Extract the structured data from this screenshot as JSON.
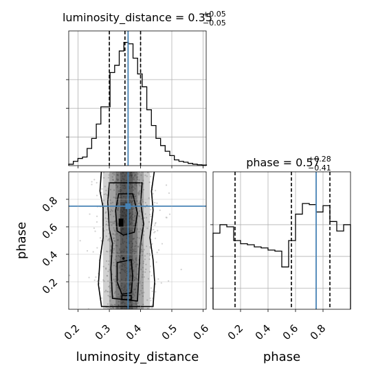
{
  "figure_background": "#ffffff",
  "colors": {
    "hist": "#000000",
    "truth": "#4682b4",
    "grid": "#b0b0b0",
    "scatter": "#9a9a9a"
  },
  "chart_data": [
    {
      "type": "histogram",
      "panel": "luminosity_distance marginal",
      "title": {
        "base": "luminosity_distance = 0.35",
        "sup": "+0.05",
        "sub": "−0.05"
      },
      "xlim": [
        0.17,
        0.61
      ],
      "ylim": [
        0,
        4.7
      ],
      "xticks": [
        0.2,
        0.3,
        0.4,
        0.5,
        0.6
      ],
      "yticks": [
        1,
        2,
        3
      ],
      "bin_start": 0.17,
      "bin_width": 0.0147,
      "counts": [
        0.05,
        0.15,
        0.25,
        0.3,
        0.6,
        0.95,
        1.45,
        2.05,
        2.05,
        3.25,
        3.5,
        4.0,
        4.3,
        4.25,
        3.75,
        3.2,
        2.75,
        1.95,
        1.4,
        0.95,
        0.7,
        0.5,
        0.35,
        0.2,
        0.15,
        0.12,
        0.08,
        0.05,
        0.03,
        0.02
      ],
      "quantiles": [
        0.3,
        0.35,
        0.4
      ],
      "truth": 0.36
    },
    {
      "type": "histogram",
      "panel": "phase marginal",
      "title": {
        "base": "phase = 0.57",
        "sup": "+0.28",
        "sub": "−0.41"
      },
      "xlim": [
        0.0,
        1.0
      ],
      "ylim": [
        0,
        1.3
      ],
      "xticks": [
        0.2,
        0.4,
        0.6,
        0.8
      ],
      "yticks": [
        0.2,
        0.5,
        0.8
      ],
      "bin_start": 0.0,
      "bin_width": 0.05,
      "counts": [
        0.72,
        0.8,
        0.78,
        0.65,
        0.62,
        0.61,
        0.59,
        0.58,
        0.56,
        0.55,
        0.4,
        0.65,
        0.9,
        1.0,
        0.99,
        0.92,
        0.98,
        0.83,
        0.74,
        0.8
      ],
      "quantiles": [
        0.16,
        0.57,
        0.85
      ],
      "truth": 0.75
    },
    {
      "type": "scatter",
      "panel": "2D density",
      "xlabel": "luminosity_distance",
      "ylabel": "phase",
      "xlim": [
        0.17,
        0.61
      ],
      "ylim": [
        0.0,
        1.0
      ],
      "xticks": [
        0.2,
        0.3,
        0.4,
        0.5,
        0.6
      ],
      "yticks": [
        0.2,
        0.4,
        0.6,
        0.8
      ],
      "truth": {
        "x": 0.36,
        "y": 0.75
      },
      "contour_levels": 4
    }
  ],
  "labels": {
    "x_left": "luminosity_distance",
    "x_right": "phase",
    "y_left": "phase",
    "x_left_ticks": [
      "0.2",
      "0.3",
      "0.4",
      "0.5",
      "0.6"
    ],
    "x_right_ticks": [
      "0.2",
      "0.4",
      "0.6",
      "0.8"
    ],
    "y_left_ticks": [
      "0.2",
      "0.4",
      "0.6",
      "0.8"
    ]
  }
}
